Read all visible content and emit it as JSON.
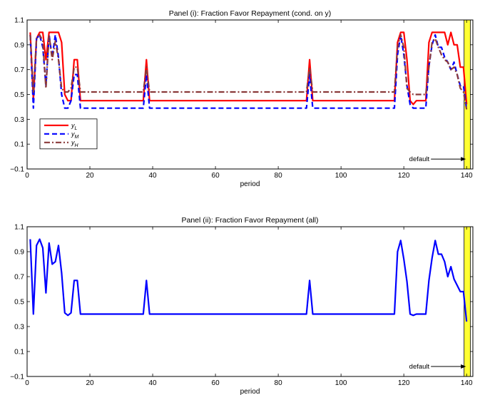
{
  "chart_data": [
    {
      "type": "line",
      "title": "Panel (i): Fraction Favor Repayment (cond. on y)",
      "xlabel": "period",
      "ylabel": "",
      "xlim": [
        0,
        142
      ],
      "ylim": [
        -0.1,
        1.1
      ],
      "xticks": [
        0,
        20,
        40,
        60,
        80,
        100,
        120,
        140
      ],
      "yticks": [
        -0.1,
        0.1,
        0.3,
        0.5,
        0.7,
        0.9,
        1.1
      ],
      "tick_labels_x": [
        "0",
        "20",
        "40",
        "60",
        "80",
        "100",
        "120",
        "140"
      ],
      "tick_labels_y": [
        "−0.1",
        "0.1",
        "0.3",
        "0.5",
        "0.7",
        "0.9",
        "1.1"
      ],
      "grid": false,
      "legend": "bottom-left",
      "annotation": {
        "text": "default",
        "arrow_to": [
          140,
          -0.02
        ]
      },
      "default_band": {
        "x": [
          139.2,
          141.2
        ],
        "color": "#ffff33"
      },
      "series": [
        {
          "name": "y",
          "sub": "L",
          "style": "solid",
          "color": "#ff0000",
          "points": [
            [
              1,
              1.0
            ],
            [
              2,
              0.46
            ],
            [
              3,
              0.95
            ],
            [
              4,
              1.0
            ],
            [
              5,
              1.0
            ],
            [
              6,
              0.78
            ],
            [
              7,
              1.0
            ],
            [
              8,
              1.0
            ],
            [
              9,
              1.0
            ],
            [
              10,
              1.0
            ],
            [
              11,
              0.92
            ],
            [
              12,
              0.5
            ],
            [
              13,
              0.45
            ],
            [
              14,
              0.45
            ],
            [
              15,
              0.78
            ],
            [
              16,
              0.78
            ],
            [
              17,
              0.45
            ],
            [
              37,
              0.45
            ],
            [
              38,
              0.78
            ],
            [
              39,
              0.45
            ],
            [
              89,
              0.45
            ],
            [
              90,
              0.78
            ],
            [
              91,
              0.45
            ],
            [
              117,
              0.45
            ],
            [
              118,
              0.92
            ],
            [
              119,
              1.0
            ],
            [
              120,
              1.0
            ],
            [
              121,
              0.78
            ],
            [
              122,
              0.45
            ],
            [
              123,
              0.42
            ],
            [
              124,
              0.45
            ],
            [
              127,
              0.45
            ],
            [
              128,
              0.92
            ],
            [
              129,
              1.0
            ],
            [
              130,
              1.0
            ],
            [
              133,
              1.0
            ],
            [
              134,
              0.9
            ],
            [
              135,
              1.0
            ],
            [
              136,
              0.9
            ],
            [
              137,
              0.9
            ],
            [
              138,
              0.72
            ],
            [
              139,
              0.72
            ],
            [
              140,
              0.42
            ]
          ]
        },
        {
          "name": "y",
          "sub": "M",
          "style": "dashed",
          "color": "#0000ff",
          "points": [
            [
              1,
              0.98
            ],
            [
              2,
              0.39
            ],
            [
              3,
              0.95
            ],
            [
              4,
              0.98
            ],
            [
              5,
              0.88
            ],
            [
              6,
              0.57
            ],
            [
              7,
              0.98
            ],
            [
              8,
              0.8
            ],
            [
              9,
              0.98
            ],
            [
              10,
              0.8
            ],
            [
              11,
              0.5
            ],
            [
              12,
              0.39
            ],
            [
              13,
              0.39
            ],
            [
              14,
              0.45
            ],
            [
              15,
              0.66
            ],
            [
              16,
              0.66
            ],
            [
              17,
              0.39
            ],
            [
              37,
              0.39
            ],
            [
              38,
              0.66
            ],
            [
              39,
              0.39
            ],
            [
              89,
              0.39
            ],
            [
              90,
              0.66
            ],
            [
              91,
              0.39
            ],
            [
              117,
              0.39
            ],
            [
              118,
              0.82
            ],
            [
              119,
              0.98
            ],
            [
              120,
              0.82
            ],
            [
              121,
              0.57
            ],
            [
              122,
              0.42
            ],
            [
              123,
              0.39
            ],
            [
              127,
              0.39
            ],
            [
              128,
              0.73
            ],
            [
              129,
              0.9
            ],
            [
              130,
              0.98
            ],
            [
              131,
              0.88
            ],
            [
              132,
              0.88
            ],
            [
              133,
              0.8
            ],
            [
              134,
              0.76
            ],
            [
              135,
              0.7
            ],
            [
              136,
              0.76
            ],
            [
              137,
              0.66
            ],
            [
              138,
              0.57
            ],
            [
              139,
              0.57
            ],
            [
              140,
              0.38
            ]
          ]
        },
        {
          "name": "y",
          "sub": "H",
          "style": "dashdot",
          "color": "#8b3a3a",
          "points": [
            [
              1,
              0.98
            ],
            [
              2,
              0.52
            ],
            [
              3,
              0.95
            ],
            [
              4,
              0.98
            ],
            [
              5,
              0.93
            ],
            [
              6,
              0.55
            ],
            [
              7,
              0.98
            ],
            [
              8,
              0.78
            ],
            [
              9,
              0.93
            ],
            [
              10,
              0.78
            ],
            [
              11,
              0.55
            ],
            [
              12,
              0.52
            ],
            [
              13,
              0.52
            ],
            [
              14,
              0.55
            ],
            [
              15,
              0.72
            ],
            [
              16,
              0.72
            ],
            [
              17,
              0.52
            ],
            [
              37,
              0.52
            ],
            [
              38,
              0.72
            ],
            [
              39,
              0.52
            ],
            [
              89,
              0.52
            ],
            [
              90,
              0.72
            ],
            [
              91,
              0.52
            ],
            [
              117,
              0.52
            ],
            [
              118,
              0.88
            ],
            [
              119,
              0.98
            ],
            [
              120,
              0.88
            ],
            [
              121,
              0.55
            ],
            [
              122,
              0.52
            ],
            [
              123,
              0.5
            ],
            [
              127,
              0.5
            ],
            [
              128,
              0.72
            ],
            [
              129,
              0.92
            ],
            [
              130,
              0.95
            ],
            [
              131,
              0.88
            ],
            [
              132,
              0.82
            ],
            [
              133,
              0.78
            ],
            [
              134,
              0.76
            ],
            [
              135,
              0.7
            ],
            [
              136,
              0.72
            ],
            [
              137,
              0.66
            ],
            [
              138,
              0.55
            ],
            [
              139,
              0.52
            ],
            [
              140,
              0.38
            ]
          ]
        }
      ]
    },
    {
      "type": "line",
      "title": "Panel (ii): Fraction Favor Repayment (all)",
      "xlabel": "period",
      "ylabel": "",
      "xlim": [
        0,
        142
      ],
      "ylim": [
        -0.1,
        1.1
      ],
      "xticks": [
        0,
        20,
        40,
        60,
        80,
        100,
        120,
        140
      ],
      "yticks": [
        -0.1,
        0.1,
        0.3,
        0.5,
        0.7,
        0.9,
        1.1
      ],
      "tick_labels_x": [
        "0",
        "20",
        "40",
        "60",
        "80",
        "100",
        "120",
        "140"
      ],
      "tick_labels_y": [
        "−0.1",
        "0.1",
        "0.3",
        "0.5",
        "0.7",
        "0.9",
        "1.1"
      ],
      "grid": false,
      "legend": "none",
      "annotation": {
        "text": "default",
        "arrow_to": [
          140,
          -0.02
        ]
      },
      "default_band": {
        "x": [
          139.2,
          141.2
        ],
        "color": "#ffff33"
      },
      "series": [
        {
          "name": "",
          "style": "solid",
          "color": "#0000ff",
          "points": [
            [
              1,
              1.0
            ],
            [
              2,
              0.4
            ],
            [
              3,
              0.95
            ],
            [
              4,
              1.0
            ],
            [
              5,
              0.93
            ],
            [
              6,
              0.57
            ],
            [
              7,
              0.97
            ],
            [
              8,
              0.8
            ],
            [
              9,
              0.82
            ],
            [
              10,
              0.95
            ],
            [
              11,
              0.73
            ],
            [
              12,
              0.41
            ],
            [
              13,
              0.39
            ],
            [
              14,
              0.41
            ],
            [
              15,
              0.67
            ],
            [
              16,
              0.67
            ],
            [
              17,
              0.4
            ],
            [
              37,
              0.4
            ],
            [
              38,
              0.67
            ],
            [
              39,
              0.4
            ],
            [
              89,
              0.4
            ],
            [
              90,
              0.67
            ],
            [
              91,
              0.4
            ],
            [
              117,
              0.4
            ],
            [
              118,
              0.9
            ],
            [
              119,
              0.99
            ],
            [
              120,
              0.84
            ],
            [
              121,
              0.66
            ],
            [
              122,
              0.4
            ],
            [
              123,
              0.39
            ],
            [
              124,
              0.4
            ],
            [
              127,
              0.4
            ],
            [
              128,
              0.67
            ],
            [
              129,
              0.85
            ],
            [
              130,
              0.99
            ],
            [
              131,
              0.88
            ],
            [
              132,
              0.88
            ],
            [
              133,
              0.82
            ],
            [
              134,
              0.7
            ],
            [
              135,
              0.78
            ],
            [
              136,
              0.68
            ],
            [
              137,
              0.63
            ],
            [
              138,
              0.58
            ],
            [
              139,
              0.58
            ],
            [
              140,
              0.34
            ]
          ]
        }
      ]
    }
  ]
}
